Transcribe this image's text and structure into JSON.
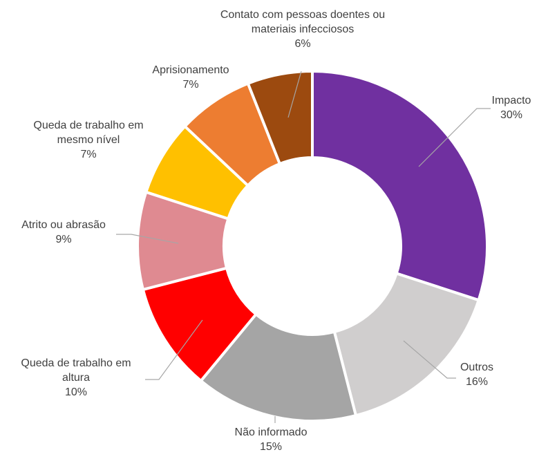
{
  "chart_data": {
    "type": "pie",
    "variant": "donut",
    "title": "",
    "legend": "none",
    "slices": [
      {
        "name": "Impacto",
        "label_lines": [
          "Impacto"
        ],
        "value": 30,
        "value_label": "30%",
        "color": "#7030a0"
      },
      {
        "name": "Outros",
        "label_lines": [
          "Outros"
        ],
        "value": 16,
        "value_label": "16%",
        "color": "#d0cece"
      },
      {
        "name": "Não informado",
        "label_lines": [
          "Não informado"
        ],
        "value": 15,
        "value_label": "15%",
        "color": "#a5a5a5"
      },
      {
        "name": "Queda de trabalho em altura",
        "label_lines": [
          "Queda de trabalho em",
          "altura"
        ],
        "value": 10,
        "value_label": "10%",
        "color": "#ff0000"
      },
      {
        "name": "Atrito ou abrasão",
        "label_lines": [
          "Atrito ou abrasão"
        ],
        "value": 9,
        "value_label": "9%",
        "color": "#df8a91"
      },
      {
        "name": "Queda de trabalho em mesmo nível",
        "label_lines": [
          "Queda de trabalho em",
          "mesmo nível"
        ],
        "value": 7,
        "value_label": "7%",
        "color": "#ffc000"
      },
      {
        "name": "Aprisionamento",
        "label_lines": [
          "Aprisionamento"
        ],
        "value": 7,
        "value_label": "7%",
        "color": "#ed7d31"
      },
      {
        "name": "Contato com pessoas doentes ou materiais infecciosos",
        "label_lines": [
          "Contato com pessoas doentes ou",
          "materiais infecciosos"
        ],
        "value": 6,
        "value_label": "6%",
        "color": "#9c4a0f"
      }
    ]
  }
}
